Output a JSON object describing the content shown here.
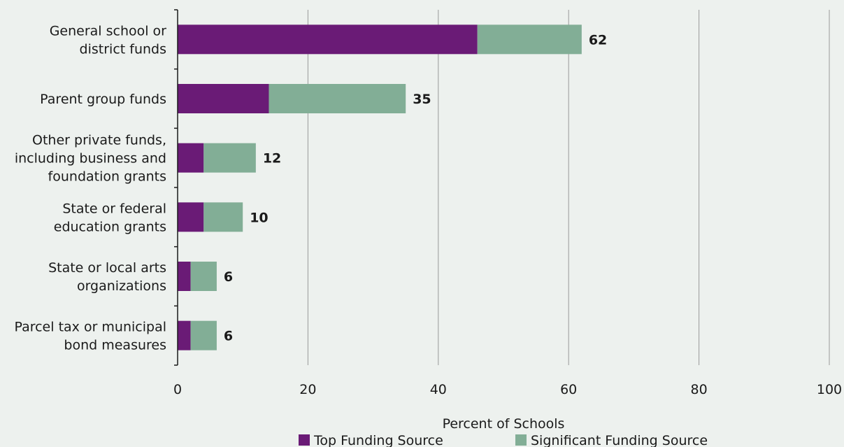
{
  "chart_data": {
    "type": "bar",
    "orientation": "horizontal",
    "stacked": true,
    "categories": [
      [
        "General school or",
        "district funds"
      ],
      [
        "Parent group funds"
      ],
      [
        "Other private funds,",
        "including business and",
        "foundation grants"
      ],
      [
        "State or federal",
        "education grants"
      ],
      [
        "State or local arts",
        "organizations"
      ],
      [
        "Parcel tax or municipal",
        "bond measures"
      ]
    ],
    "series": [
      {
        "name": "Top Funding Source",
        "color": "#6a1b76",
        "values": [
          46,
          14,
          4,
          4,
          2,
          2
        ]
      },
      {
        "name": "Significant Funding Source",
        "color": "#82ae96",
        "values": [
          16,
          21,
          8,
          6,
          4,
          4
        ]
      }
    ],
    "totals": [
      62,
      35,
      12,
      10,
      6,
      6
    ],
    "total_labels": [
      "62",
      "35",
      "12",
      "10",
      "6",
      "6"
    ],
    "xlim": [
      0,
      100
    ],
    "xticks": [
      0,
      20,
      40,
      60,
      80,
      100
    ],
    "xtick_labels": [
      "0",
      "20",
      "40",
      "60",
      "80",
      "100"
    ],
    "xlabel": "Percent of Schools",
    "ylabel": "",
    "grid": "vertical",
    "legend_position": "bottom",
    "colors": {
      "background": "#edf1ee",
      "grid": "#9a9a9a",
      "axis": "#1a1a1a"
    }
  }
}
